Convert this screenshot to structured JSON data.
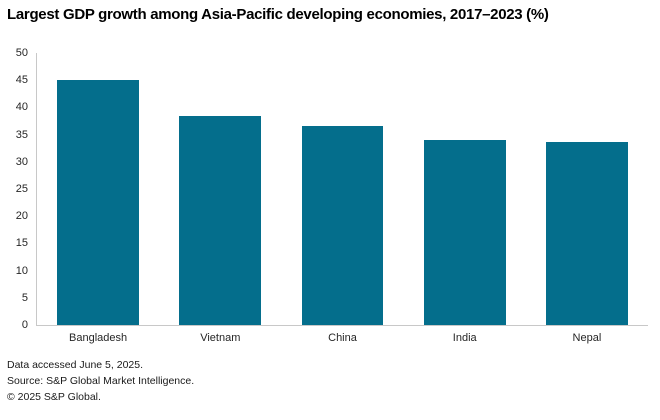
{
  "chart": {
    "title": "Largest GDP growth among Asia-Pacific developing economies, 2017–2023 (%)"
  },
  "chart_data": {
    "type": "bar",
    "title": "Largest GDP growth among Asia-Pacific developing economies, 2017–2023 (%)",
    "categories": [
      "Bangladesh",
      "Vietnam",
      "China",
      "India",
      "Nepal"
    ],
    "values": [
      45.0,
      38.5,
      36.5,
      34.1,
      33.7
    ],
    "xlabel": "",
    "ylabel": "",
    "ylim": [
      0,
      50
    ],
    "yticks": [
      0,
      5,
      10,
      15,
      20,
      25,
      30,
      35,
      40,
      45,
      50
    ],
    "grid": false,
    "legend": "none",
    "bar_color": "#046e8c",
    "axis_color": "#c8c8c8"
  },
  "footer": {
    "line1": "Data accessed June 5, 2025.",
    "line2": "Source: S&P Global Market Intelligence.",
    "line3": "© 2025 S&P Global."
  }
}
